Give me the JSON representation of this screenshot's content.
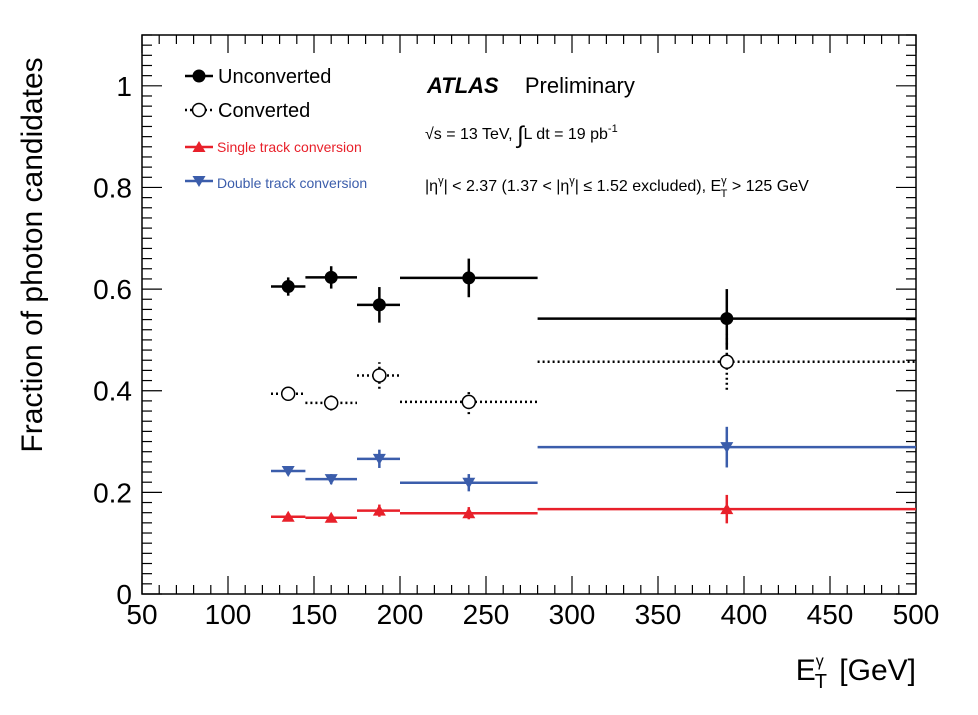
{
  "chart_data": {
    "type": "scatter",
    "title": "",
    "experiment": "ATLAS",
    "status": "Preliminary",
    "annotation_energy": "√s = 13 TeV, ∫L dt = 19 pb⁻¹",
    "annotation_cuts": "|η^γ| < 2.37 (1.37 < |η^γ| ≤ 1.52 excluded), E_T^γ > 125 GeV",
    "xlabel": "E_T^γ [GeV]",
    "ylabel": "Fraction of photon candidates",
    "xlim": [
      50,
      500
    ],
    "ylim": [
      0,
      1.1
    ],
    "x_ticks": [
      50,
      100,
      150,
      200,
      250,
      300,
      350,
      400,
      450,
      500
    ],
    "y_ticks": [
      0,
      0.2,
      0.4,
      0.6,
      0.8,
      1
    ],
    "y_tick_labels": [
      "0",
      "0.2",
      "0.4",
      "0.6",
      "0.8",
      "1"
    ],
    "grid": false,
    "legend_position": "top-left",
    "bins": [
      {
        "x": 135,
        "xlow": 125,
        "xhigh": 145
      },
      {
        "x": 160,
        "xlow": 145,
        "xhigh": 175
      },
      {
        "x": 188,
        "xlow": 175,
        "xhigh": 200
      },
      {
        "x": 240,
        "xlow": 200,
        "xhigh": 280
      },
      {
        "x": 390,
        "xlow": 280,
        "xhigh": 500
      }
    ],
    "series": [
      {
        "name": "Unconverted",
        "marker": "filled-circle",
        "line": "solid",
        "color": "#000000",
        "values": [
          0.605,
          0.623,
          0.569,
          0.622,
          0.542
        ],
        "errors": [
          0.018,
          0.022,
          0.035,
          0.038,
          0.058
        ]
      },
      {
        "name": "Converted",
        "marker": "open-circle",
        "line": "dotted",
        "color": "#000000",
        "values": [
          0.394,
          0.376,
          0.43,
          0.378,
          0.457
        ],
        "errors": [
          0.012,
          0.015,
          0.026,
          0.024,
          0.055
        ]
      },
      {
        "name": "Single track conversion",
        "marker": "triangle-up",
        "line": "solid",
        "color": "#e8202a",
        "values": [
          0.152,
          0.15,
          0.164,
          0.159,
          0.167
        ],
        "errors": [
          0.006,
          0.007,
          0.012,
          0.012,
          0.028
        ]
      },
      {
        "name": "Double track conversion",
        "marker": "triangle-down",
        "line": "solid",
        "color": "#3b5dab",
        "values": [
          0.242,
          0.226,
          0.266,
          0.219,
          0.289
        ],
        "errors": [
          0.008,
          0.01,
          0.018,
          0.017,
          0.04
        ]
      }
    ]
  }
}
